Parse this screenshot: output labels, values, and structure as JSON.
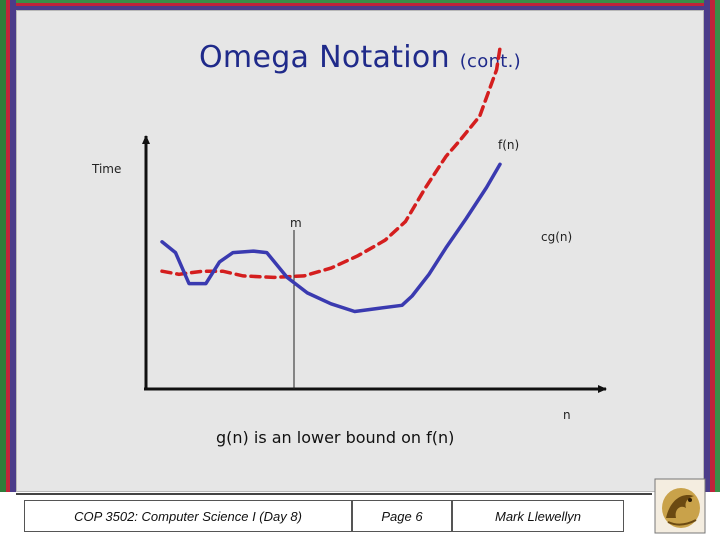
{
  "title": {
    "main": "Omega Notation",
    "suffix": "(cont.)"
  },
  "chart_data": {
    "type": "line",
    "ylabel": "Time",
    "xlabel": "n",
    "threshold_label": "m",
    "series": [
      {
        "name": "f(n)",
        "style": "dashed",
        "color": "#d41e1e",
        "points": [
          [
            0.0,
            0.76
          ],
          [
            0.05,
            0.74
          ],
          [
            0.12,
            0.76
          ],
          [
            0.18,
            0.76
          ],
          [
            0.24,
            0.73
          ],
          [
            0.33,
            0.72
          ],
          [
            0.42,
            0.73
          ],
          [
            0.5,
            0.78
          ],
          [
            0.58,
            0.86
          ],
          [
            0.66,
            0.96
          ],
          [
            0.72,
            1.08
          ],
          [
            0.78,
            1.3
          ],
          [
            0.84,
            1.5
          ],
          [
            0.88,
            1.6
          ],
          [
            0.94,
            1.76
          ],
          [
            0.99,
            2.06
          ],
          [
            1.0,
            2.2
          ]
        ]
      },
      {
        "name": "cg(n)",
        "style": "solid",
        "color": "#3a3ab0",
        "points": [
          [
            0.0,
            0.95
          ],
          [
            0.04,
            0.88
          ],
          [
            0.08,
            0.68
          ],
          [
            0.13,
            0.68
          ],
          [
            0.17,
            0.82
          ],
          [
            0.21,
            0.88
          ],
          [
            0.27,
            0.89
          ],
          [
            0.31,
            0.88
          ],
          [
            0.37,
            0.72
          ],
          [
            0.43,
            0.62
          ],
          [
            0.5,
            0.55
          ],
          [
            0.57,
            0.5
          ],
          [
            0.64,
            0.52
          ],
          [
            0.71,
            0.54
          ],
          [
            0.74,
            0.6
          ],
          [
            0.79,
            0.74
          ],
          [
            0.84,
            0.91
          ],
          [
            0.9,
            1.1
          ],
          [
            0.96,
            1.3
          ],
          [
            1.0,
            1.45
          ]
        ]
      }
    ]
  },
  "caption": "g(n) is an lower bound on f(n)",
  "footer": {
    "course": "COP 3502: Computer Science I  (Day 8)",
    "page": "Page 6",
    "author": "Mark Llewellyn"
  },
  "colors": {
    "title": "#1f2a8a",
    "slide_bg": "#e6e6e6"
  }
}
